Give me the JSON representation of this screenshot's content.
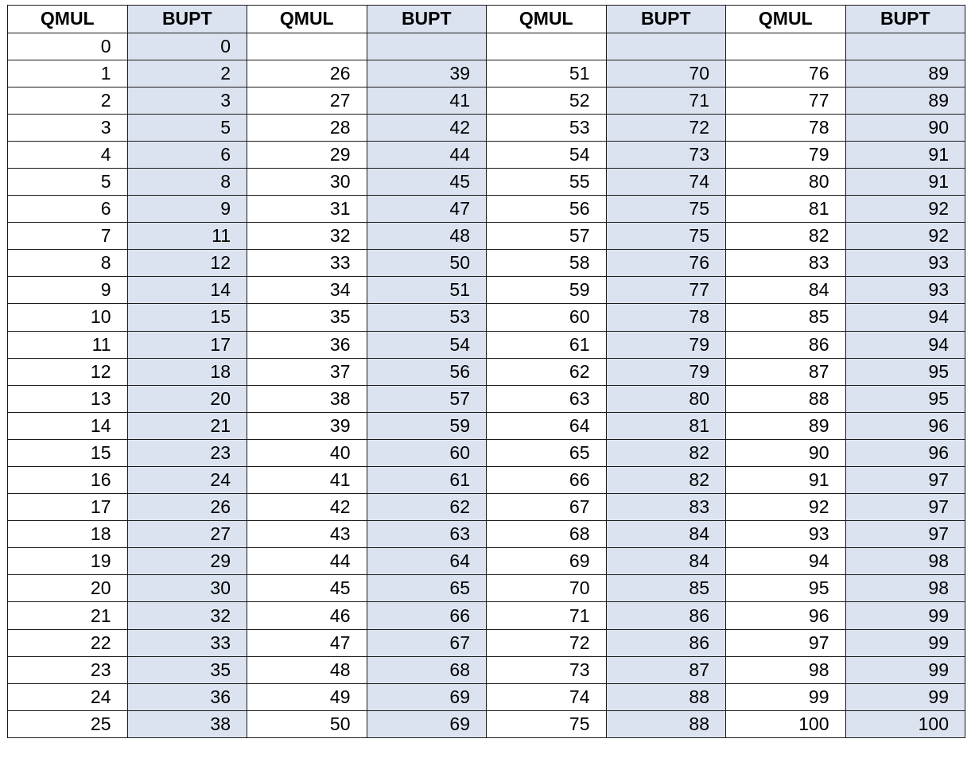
{
  "table": {
    "headers": [
      "QMUL",
      "BUPT",
      "QMUL",
      "BUPT",
      "QMUL",
      "BUPT",
      "QMUL",
      "BUPT"
    ],
    "rows": [
      [
        "0",
        "0",
        "",
        "",
        "",
        "",
        "",
        ""
      ],
      [
        "1",
        "2",
        "26",
        "39",
        "51",
        "70",
        "76",
        "89"
      ],
      [
        "2",
        "3",
        "27",
        "41",
        "52",
        "71",
        "77",
        "89"
      ],
      [
        "3",
        "5",
        "28",
        "42",
        "53",
        "72",
        "78",
        "90"
      ],
      [
        "4",
        "6",
        "29",
        "44",
        "54",
        "73",
        "79",
        "91"
      ],
      [
        "5",
        "8",
        "30",
        "45",
        "55",
        "74",
        "80",
        "91"
      ],
      [
        "6",
        "9",
        "31",
        "47",
        "56",
        "75",
        "81",
        "92"
      ],
      [
        "7",
        "11",
        "32",
        "48",
        "57",
        "75",
        "82",
        "92"
      ],
      [
        "8",
        "12",
        "33",
        "50",
        "58",
        "76",
        "83",
        "93"
      ],
      [
        "9",
        "14",
        "34",
        "51",
        "59",
        "77",
        "84",
        "93"
      ],
      [
        "10",
        "15",
        "35",
        "53",
        "60",
        "78",
        "85",
        "94"
      ],
      [
        "11",
        "17",
        "36",
        "54",
        "61",
        "79",
        "86",
        "94"
      ],
      [
        "12",
        "18",
        "37",
        "56",
        "62",
        "79",
        "87",
        "95"
      ],
      [
        "13",
        "20",
        "38",
        "57",
        "63",
        "80",
        "88",
        "95"
      ],
      [
        "14",
        "21",
        "39",
        "59",
        "64",
        "81",
        "89",
        "96"
      ],
      [
        "15",
        "23",
        "40",
        "60",
        "65",
        "82",
        "90",
        "96"
      ],
      [
        "16",
        "24",
        "41",
        "61",
        "66",
        "82",
        "91",
        "97"
      ],
      [
        "17",
        "26",
        "42",
        "62",
        "67",
        "83",
        "92",
        "97"
      ],
      [
        "18",
        "27",
        "43",
        "63",
        "68",
        "84",
        "93",
        "97"
      ],
      [
        "19",
        "29",
        "44",
        "64",
        "69",
        "84",
        "94",
        "98"
      ],
      [
        "20",
        "30",
        "45",
        "65",
        "70",
        "85",
        "95",
        "98"
      ],
      [
        "21",
        "32",
        "46",
        "66",
        "71",
        "86",
        "96",
        "99"
      ],
      [
        "22",
        "33",
        "47",
        "67",
        "72",
        "86",
        "97",
        "99"
      ],
      [
        "23",
        "35",
        "48",
        "68",
        "73",
        "87",
        "98",
        "99"
      ],
      [
        "24",
        "36",
        "49",
        "69",
        "74",
        "88",
        "99",
        "99"
      ],
      [
        "25",
        "38",
        "50",
        "69",
        "75",
        "88",
        "100",
        "100"
      ]
    ]
  },
  "colors": {
    "bupt_fill": "#dce3f0",
    "border": "#1a1a1a",
    "text": "#000000"
  }
}
